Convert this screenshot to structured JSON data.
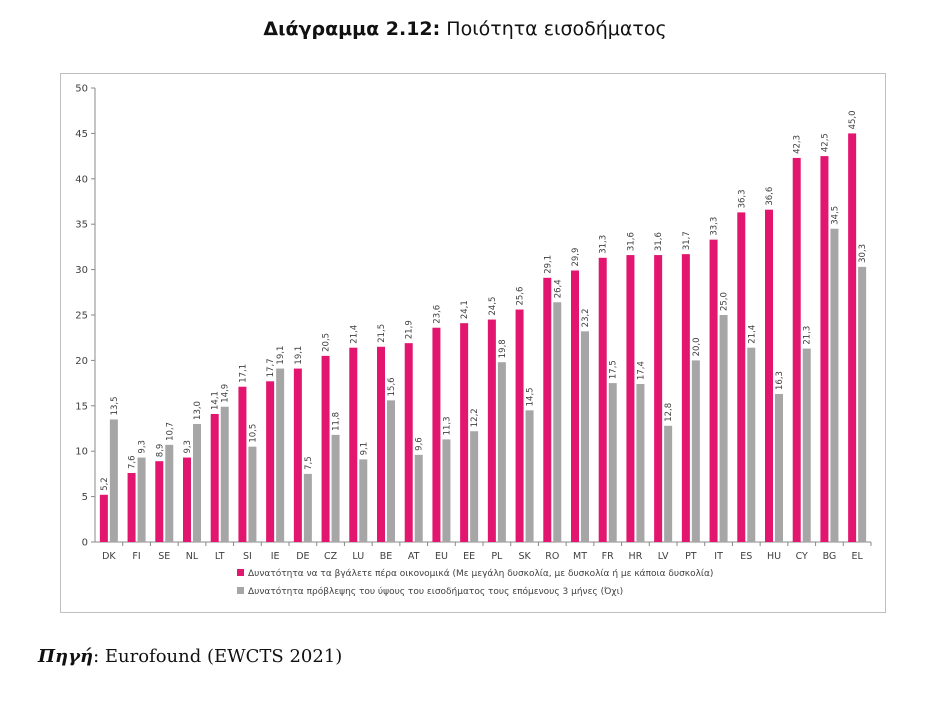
{
  "title": {
    "prefix": "Διάγραμμα 2.12:",
    "text": "Ποιότητα εισοδήματος"
  },
  "source": {
    "label": "Πηγή",
    "text": ": Eurofound (EWCTS 2021)"
  },
  "colors": {
    "series1": "#e2166f",
    "series2": "#a6a6a6",
    "axis": "#888888"
  },
  "chart_data": {
    "type": "bar",
    "title": "Ποιότητα εισοδήματος",
    "ylim": [
      0,
      50
    ],
    "yticks": [
      0,
      5,
      10,
      15,
      20,
      25,
      30,
      35,
      40,
      45,
      50
    ],
    "grid": false,
    "legend_position": "bottom",
    "categories": [
      "DK",
      "FI",
      "SE",
      "NL",
      "LT",
      "SI",
      "IE",
      "DE",
      "CZ",
      "LU",
      "BE",
      "AT",
      "EU",
      "EE",
      "PL",
      "SK",
      "RO",
      "MT",
      "FR",
      "HR",
      "LV",
      "PT",
      "IT",
      "ES",
      "HU",
      "CY",
      "BG",
      "EL"
    ],
    "series": [
      {
        "name": "Δυνατότητα να τα βγάλετε πέρα οικονομικά (Με μεγάλη δυσκολία, με δυσκολία ή με κάποια δυσκολία)",
        "values": [
          5.2,
          7.6,
          8.9,
          9.3,
          14.1,
          17.1,
          17.7,
          19.1,
          20.5,
          21.4,
          21.5,
          21.9,
          23.6,
          24.1,
          24.5,
          25.6,
          29.1,
          29.9,
          31.3,
          31.6,
          31.6,
          31.7,
          33.3,
          36.3,
          36.6,
          42.3,
          42.5,
          45.0
        ]
      },
      {
        "name": "Δυνατότητα πρόβλεψης του ύψους του εισοδήματος τους επόμενους 3 μήνες (Όχι)",
        "values": [
          13.5,
          9.3,
          10.7,
          13.0,
          14.9,
          10.5,
          19.1,
          7.5,
          11.8,
          9.1,
          15.6,
          9.6,
          11.3,
          12.2,
          19.8,
          14.5,
          26.4,
          23.2,
          17.5,
          17.4,
          12.8,
          20.0,
          25.0,
          21.4,
          16.3,
          21.3,
          34.5,
          30.3
        ]
      }
    ]
  }
}
